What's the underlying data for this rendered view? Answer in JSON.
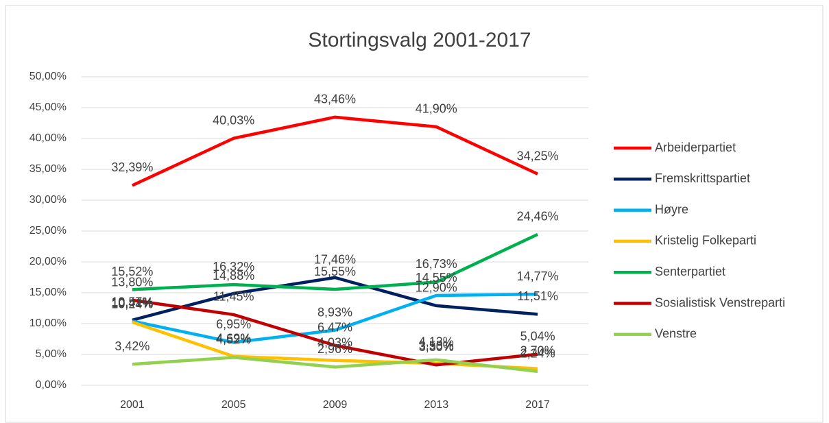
{
  "chart_data": {
    "type": "line",
    "title": "Stortingsvalg 2001-2017",
    "categories": [
      "2001",
      "2005",
      "2009",
      "2013",
      "2017"
    ],
    "ylim": [
      0,
      50
    ],
    "yticks": [
      {
        "value": 0,
        "label": "0,00%"
      },
      {
        "value": 5,
        "label": "5,00%"
      },
      {
        "value": 10,
        "label": "10,00%"
      },
      {
        "value": 15,
        "label": "15,00%"
      },
      {
        "value": 20,
        "label": "20,00%"
      },
      {
        "value": 25,
        "label": "25,00%"
      },
      {
        "value": 30,
        "label": "30,00%"
      },
      {
        "value": 35,
        "label": "35,00%"
      },
      {
        "value": 40,
        "label": "40,00%"
      },
      {
        "value": 45,
        "label": "45,00%"
      },
      {
        "value": 50,
        "label": "50,00%"
      }
    ],
    "grid": true,
    "legend": "right",
    "series": [
      {
        "name": "Arbeiderpartiet",
        "color": "#ff0000",
        "values": [
          32.39,
          40.03,
          43.46,
          41.9,
          34.25
        ],
        "value_labels": [
          "32,39%",
          "40,03%",
          "43,46%",
          "41,90%",
          "34,25%"
        ]
      },
      {
        "name": "Fremskrittspartiet",
        "color": "#002060",
        "values": [
          10.57,
          14.88,
          17.46,
          12.9,
          11.51
        ],
        "value_labels": [
          "10,57%",
          "14,88%",
          "17,46%",
          "12,90%",
          "11,51%"
        ]
      },
      {
        "name": "Høyre",
        "color": "#00b0f0",
        "values": [
          10.41,
          6.95,
          8.93,
          14.55,
          14.77
        ],
        "value_labels": [
          "10,41%",
          "6,95%",
          "8,93%",
          "14,55%",
          "14,77%"
        ]
      },
      {
        "name": "Kristelig Folkeparti",
        "color": "#ffc000",
        "values": [
          10.24,
          4.69,
          4.03,
          3.55,
          2.7
        ],
        "value_labels": [
          "10,24%",
          "4,69%",
          "4,03%",
          "3,55%",
          "2,70%"
        ]
      },
      {
        "name": "Senterpartiet",
        "color": "#00b050",
        "values": [
          15.52,
          16.32,
          15.55,
          16.73,
          24.46
        ],
        "value_labels": [
          "15,52%",
          "16,32%",
          "15,55%",
          "16,73%",
          "24,46%"
        ]
      },
      {
        "name": "Sosialistisk Venstreparti",
        "color": "#c00000",
        "values": [
          13.8,
          11.45,
          6.47,
          3.3,
          5.04
        ],
        "value_labels": [
          "13,80%",
          "11,45%",
          "6,47%",
          "3,30%",
          "5,04%"
        ]
      },
      {
        "name": "Venstre",
        "color": "#92d050",
        "values": [
          3.42,
          4.52,
          2.96,
          4.13,
          2.24
        ],
        "value_labels": [
          "3,42%",
          "4,52%",
          "2,96%",
          "4,13%",
          "2,24%"
        ]
      }
    ]
  }
}
